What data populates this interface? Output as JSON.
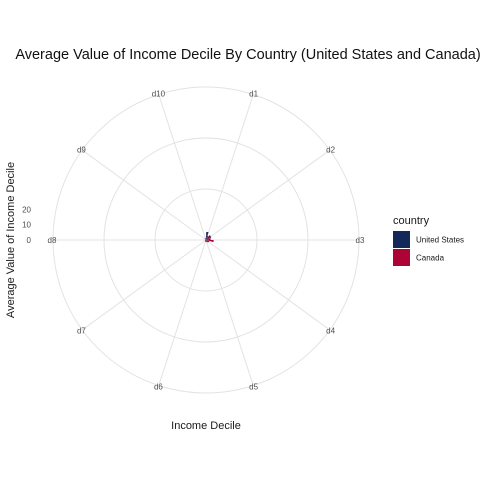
{
  "chart_data": {
    "type": "radial-bar",
    "title": "Average Value of Income Decile By Country (United States and Canada)",
    "xlabel": "Income Decile",
    "ylabel": "Average Value of Income Decile",
    "categories": [
      "d1",
      "d2",
      "d3",
      "d4",
      "d5",
      "d6",
      "d7",
      "d8",
      "d9",
      "d10"
    ],
    "r_ticks": [
      "0",
      "10",
      "20"
    ],
    "rlim": [
      0,
      30
    ],
    "grid": true,
    "legend": {
      "title": "country",
      "placement": "right"
    },
    "series": [
      {
        "name": "United States",
        "color": "#13285a",
        "values": [
          1.6,
          1.2,
          0.9,
          0.7,
          0.5,
          0.4,
          0.3,
          0.2,
          0.2,
          0.5
        ]
      },
      {
        "name": "Canada",
        "color": "#ae0435",
        "values": [
          0.9,
          1.1,
          1.5,
          0.6,
          0.4,
          0.3,
          0.2,
          0.2,
          0.2,
          0.3
        ]
      }
    ]
  }
}
